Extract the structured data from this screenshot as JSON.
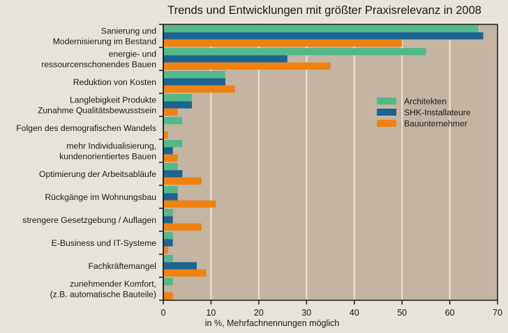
{
  "chart_data": {
    "type": "bar",
    "orientation": "horizontal",
    "title": "Trends und Entwicklungen mit größter Praxisrelevanz in 2008",
    "xlabel": "in %, Mehrfachnennungen möglich",
    "ylabel": "",
    "xlim": [
      0,
      70
    ],
    "xticks": [
      0,
      10,
      20,
      30,
      40,
      50,
      60,
      70
    ],
    "grid": true,
    "legend_position": "right",
    "categories": [
      [
        "Sanierung und",
        "Modernisierung im Bestand"
      ],
      [
        "energie- und",
        "ressourcenschonendes Bauen"
      ],
      [
        "Reduktion von Kosten"
      ],
      [
        "Langlebigkeit Produkte",
        "Zunahme Qualitätsbewusstsein"
      ],
      [
        "Folgen des demografischen Wandels"
      ],
      [
        "mehr Individualisierung,",
        "kundenorientiertes Bauen"
      ],
      [
        "Optimierung der Arbeitsabläufe"
      ],
      [
        "Rückgänge im Wohnungsbau"
      ],
      [
        "strengere Gesetzgebung / Auflagen"
      ],
      [
        "E-Business und IT-Systeme"
      ],
      [
        "Fachkräftemangel"
      ],
      [
        "zunehmender Komfort,",
        "(z.B. automatische Bauteile)"
      ]
    ],
    "series": [
      {
        "name": "Architekten",
        "color": "#52b98a",
        "values": [
          66,
          55,
          13,
          6,
          4,
          4,
          3,
          3,
          2,
          2,
          2,
          2
        ]
      },
      {
        "name": "SHK-Installateure",
        "color": "#1c6491",
        "values": [
          67,
          26,
          13,
          6,
          0,
          2,
          4,
          3,
          2,
          2,
          7,
          0
        ]
      },
      {
        "name": "Bauunternehmer",
        "color": "#f0820f",
        "values": [
          50,
          35,
          15,
          3,
          1,
          3,
          8,
          11,
          8,
          1,
          9,
          2
        ]
      }
    ],
    "colors": {
      "background": "#e7e2da",
      "plot_background": "#c4b4a2",
      "grid": "#ece4d6",
      "axis": "#1a1a1a"
    }
  }
}
